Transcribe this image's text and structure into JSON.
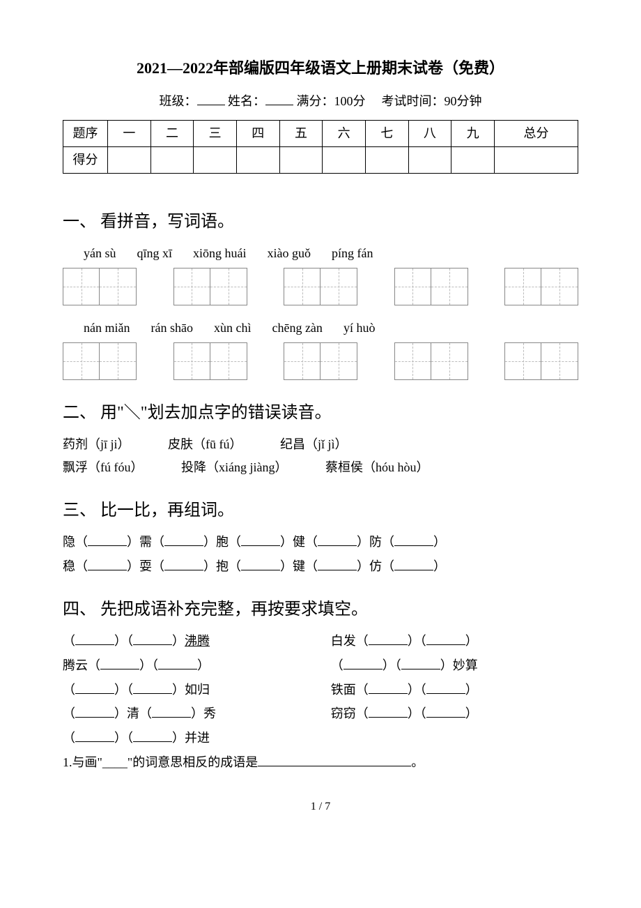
{
  "title": "2021—2022年部编版四年级语文上册期末试卷（免费）",
  "meta": {
    "class_label": "班级：",
    "name_label": "姓名：",
    "full_label": "满分：",
    "full_value": "100分",
    "time_label": "考试时间：",
    "time_value": "90分钟"
  },
  "score_table": {
    "row1_label": "题序",
    "columns": [
      "一",
      "二",
      "三",
      "四",
      "五",
      "六",
      "七",
      "八",
      "九",
      "总分"
    ],
    "row2_label": "得分"
  },
  "q1": {
    "heading": "一、 看拼音，写词语。",
    "row1_pinyin": [
      "yán sù",
      "qīng xī",
      "xiōng huái",
      "xiào guǒ",
      "píng fán"
    ],
    "row2_pinyin": [
      "nán miǎn",
      "rán shāo",
      "xùn chì",
      "chēng zàn",
      "yí huò"
    ]
  },
  "q2": {
    "heading": "二、 用\"＼\"划去加点字的错误读音。",
    "line1": [
      {
        "word": "药剂",
        "reading": "（jī ji）"
      },
      {
        "word": "皮肤",
        "reading": "（fū fú）"
      },
      {
        "word": "纪昌",
        "reading": "（jǐ jì）"
      }
    ],
    "line2": [
      {
        "word": "飘浮",
        "reading": "（fú fóu）"
      },
      {
        "word": "投降",
        "reading": "（xiáng jiàng）"
      },
      {
        "word": "蔡桓侯",
        "reading": "（hóu hòu）"
      }
    ]
  },
  "q3": {
    "heading": "三、 比一比，再组词。",
    "line1": [
      "隐",
      "需",
      "胞",
      "健",
      "防"
    ],
    "line2": [
      "稳",
      "耍",
      "抱",
      "键",
      "仿"
    ]
  },
  "q4": {
    "heading": "四、 先把成语补充完整，再按要求填空。",
    "rows": [
      {
        "left_prefix": "（",
        "left_mid": "）（",
        "left_suffix": "）",
        "left_word": "沸腾",
        "left_underlined": true,
        "right_word": "白发",
        "right_pattern": "suffix"
      },
      {
        "left_word": "腾云",
        "left_pattern": "suffix",
        "right_pattern": "prefix",
        "right_word": "妙算"
      },
      {
        "left_pattern": "prefix",
        "left_word": "如归",
        "right_word": "铁面",
        "right_pattern": "suffix"
      },
      {
        "left_special": true,
        "left_a": "清",
        "left_b": "秀",
        "right_word": "窃窃",
        "right_pattern": "suffix"
      },
      {
        "left_pattern": "prefix",
        "left_word": "并进",
        "right_empty": true
      }
    ],
    "sub1": "1.与画\"____\"的词意思相反的成语是",
    "sub1_end": "。"
  },
  "page_num": "1 / 7"
}
